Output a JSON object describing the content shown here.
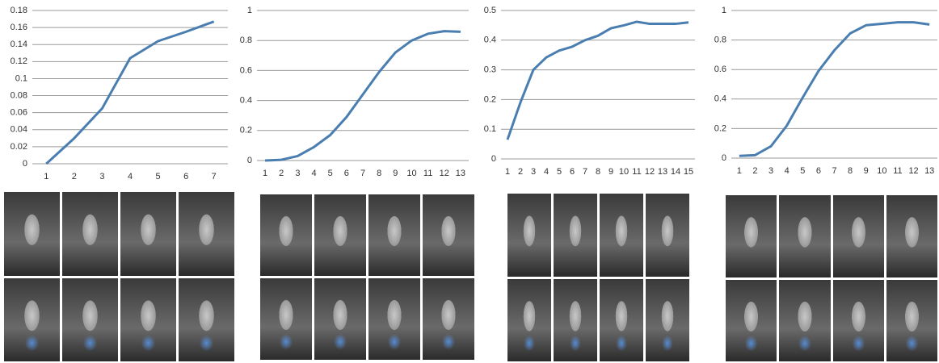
{
  "chart_data": [
    {
      "type": "line",
      "categories": [
        1,
        2,
        3,
        4,
        5,
        6,
        7
      ],
      "values": [
        0,
        0.03,
        0.065,
        0.124,
        0.144,
        0.155,
        0.167
      ],
      "color": "#4a7eb0",
      "ylim": [
        0,
        0.18
      ],
      "yticks": [
        0,
        0.02,
        0.04,
        0.06,
        0.08,
        0.1,
        0.12,
        0.14,
        0.16,
        0.18
      ],
      "grid": true
    },
    {
      "type": "line",
      "categories": [
        1,
        2,
        3,
        4,
        5,
        6,
        7,
        8,
        9,
        10,
        11,
        12,
        13
      ],
      "values": [
        0,
        0.005,
        0.03,
        0.09,
        0.17,
        0.29,
        0.44,
        0.59,
        0.72,
        0.8,
        0.845,
        0.862,
        0.858
      ],
      "color": "#4a7eb0",
      "ylim": [
        0,
        1
      ],
      "yticks": [
        0,
        0.2,
        0.4,
        0.6,
        0.8,
        1
      ],
      "grid": true
    },
    {
      "type": "line",
      "categories": [
        1,
        2,
        3,
        4,
        5,
        6,
        7,
        8,
        9,
        10,
        11,
        12,
        13,
        14,
        15
      ],
      "values": [
        0.065,
        0.19,
        0.3,
        0.342,
        0.365,
        0.378,
        0.4,
        0.415,
        0.44,
        0.45,
        0.462,
        0.455,
        0.455,
        0.455,
        0.46
      ],
      "color": "#4a7eb0",
      "ylim": [
        0,
        0.5
      ],
      "yticks": [
        0,
        0.1,
        0.2,
        0.3,
        0.4,
        0.5
      ],
      "grid": true
    },
    {
      "type": "line",
      "categories": [
        1,
        2,
        3,
        4,
        5,
        6,
        7,
        8,
        9,
        10,
        11,
        12,
        13
      ],
      "values": [
        0.015,
        0.02,
        0.08,
        0.22,
        0.41,
        0.59,
        0.73,
        0.845,
        0.9,
        0.91,
        0.92,
        0.92,
        0.905
      ],
      "color": "#4a7eb0",
      "ylim": [
        0,
        1
      ],
      "yticks": [
        0,
        0.2,
        0.4,
        0.6,
        0.8,
        1
      ],
      "grid": true
    }
  ]
}
